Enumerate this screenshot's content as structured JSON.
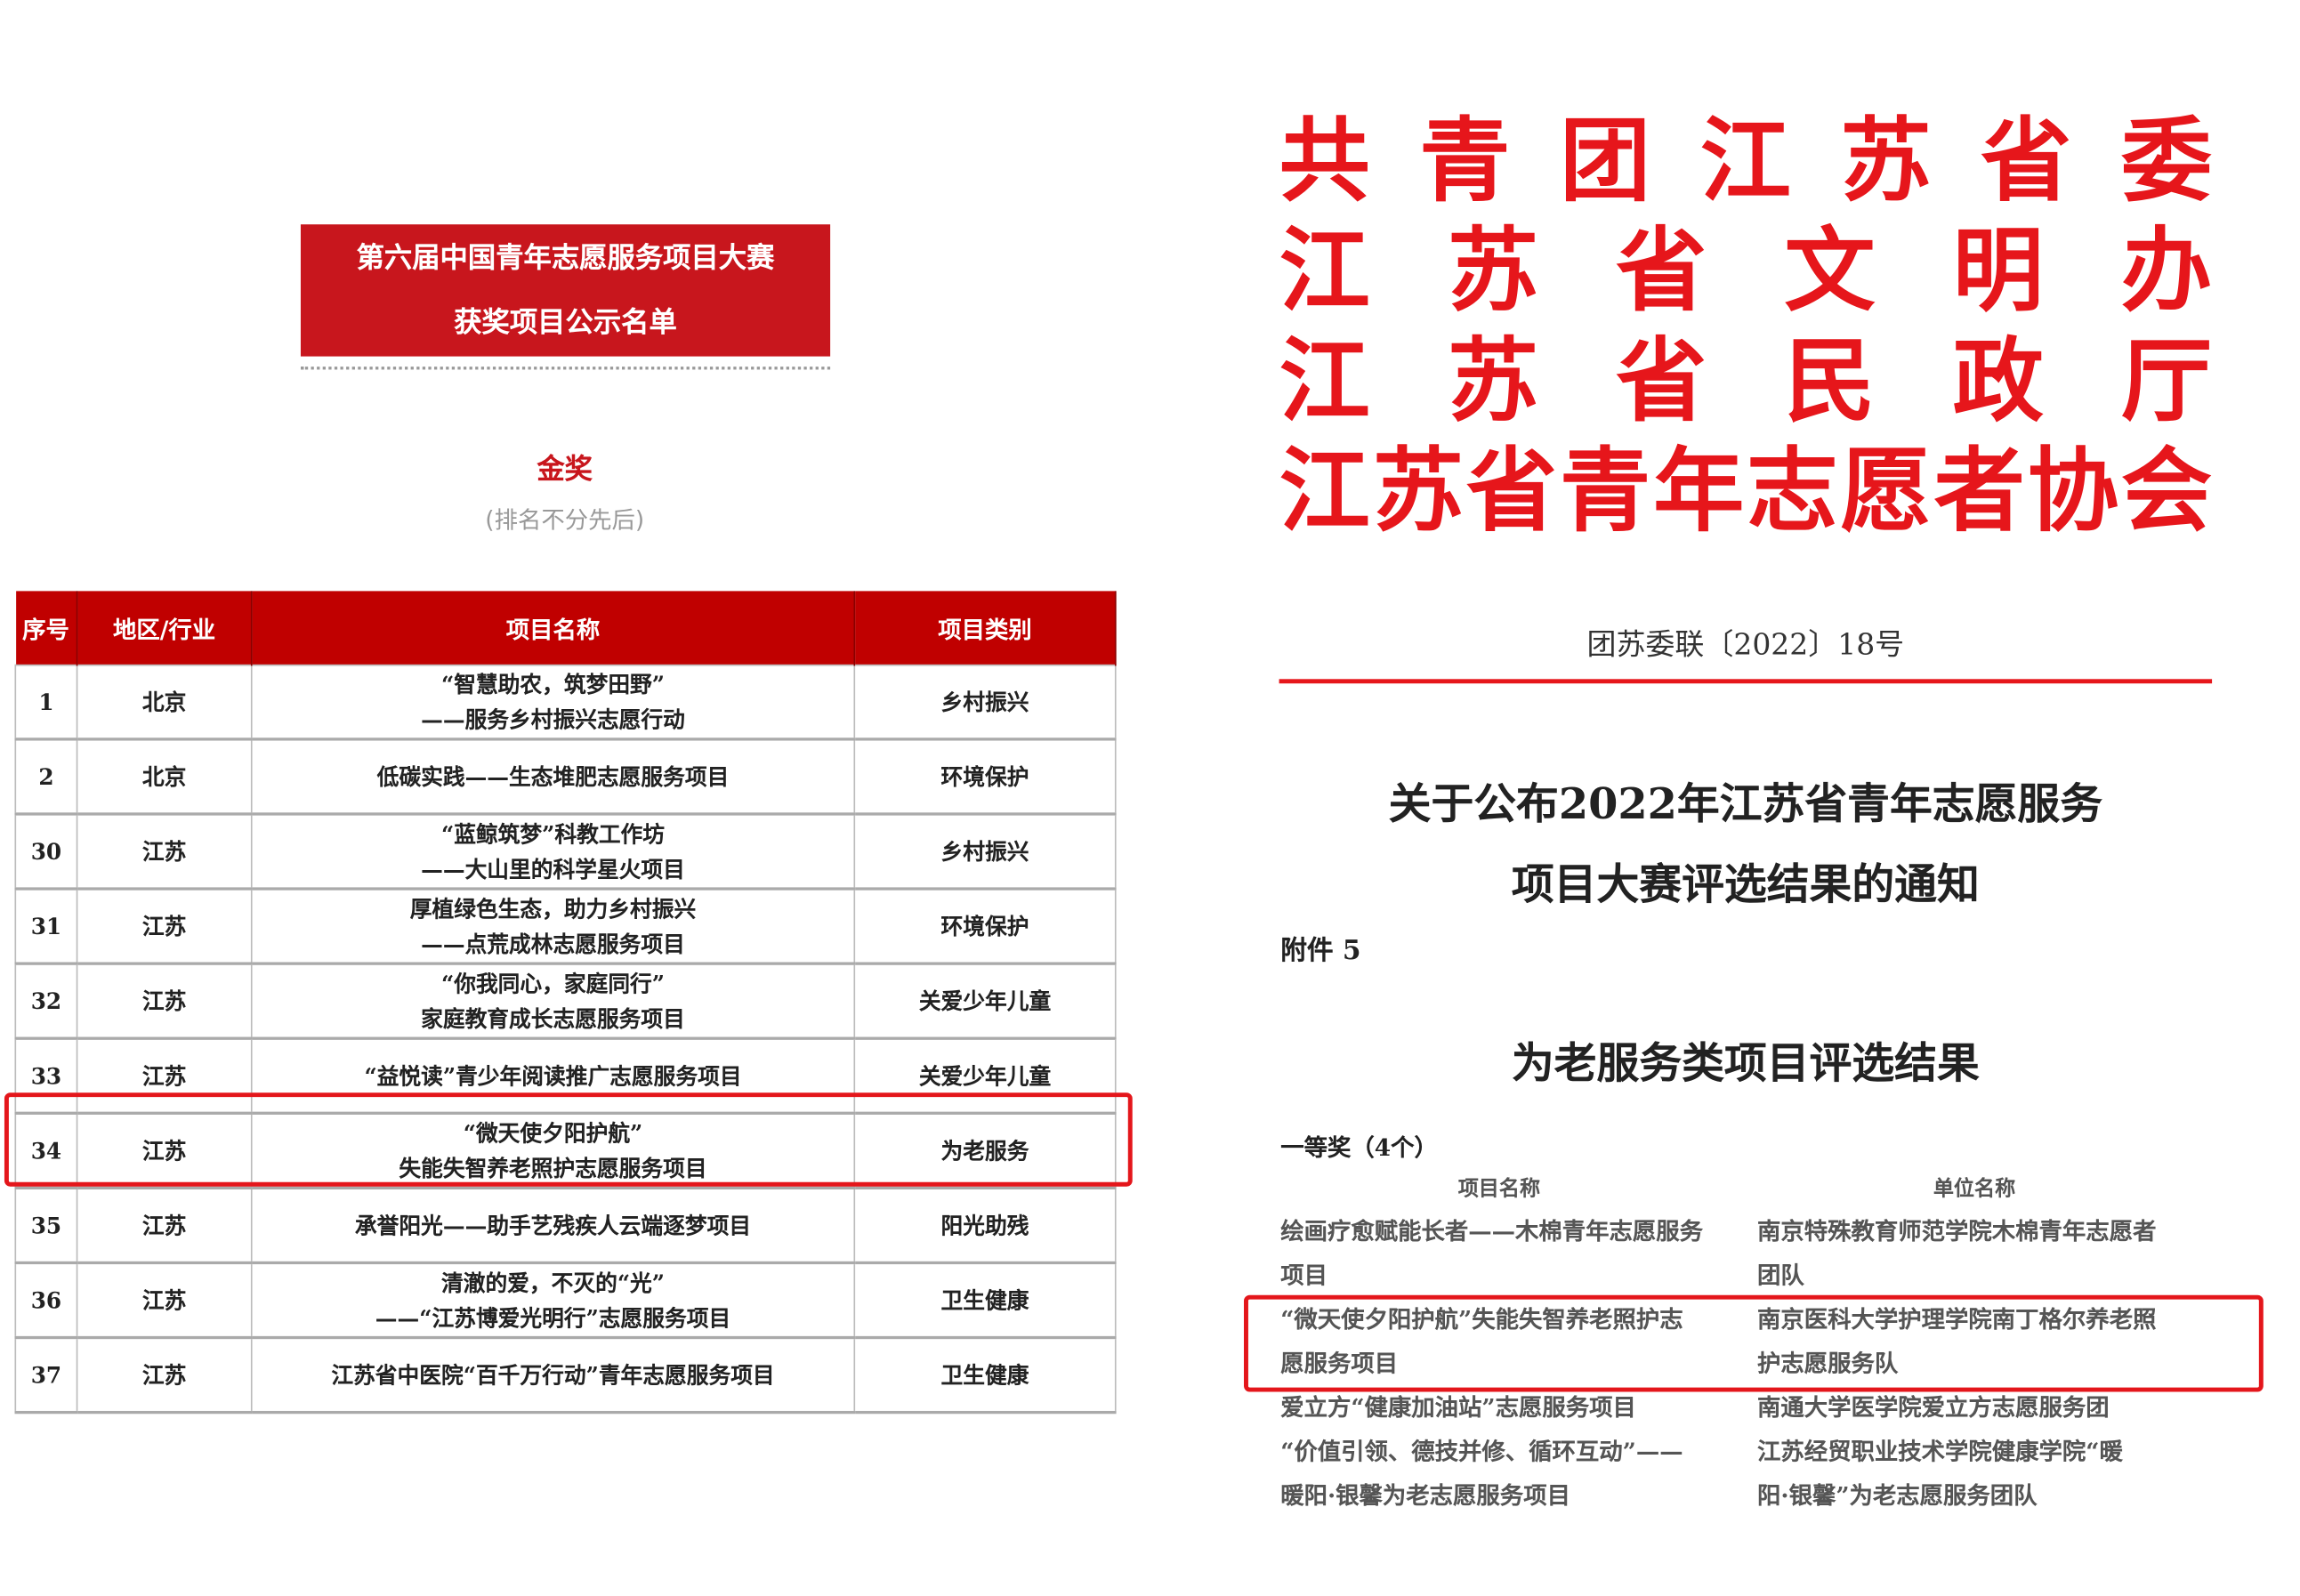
{
  "left": {
    "title_lines": [
      "第六届中国青年志愿服务项目大赛",
      "获奖项目公示名单"
    ],
    "award": "金奖",
    "note": "(排名不分先后)",
    "headers": [
      "序号",
      "地区/行业",
      "项目名称",
      "项目类别"
    ],
    "rows": [
      {
        "no": "1",
        "region": "北京",
        "name1": "“智慧助农，筑梦田野”",
        "name2": "——服务乡村振兴志愿行动",
        "cat": "乡村振兴"
      },
      {
        "no": "2",
        "region": "北京",
        "name1": "低碳实践——生态堆肥志愿服务项目",
        "name2": "",
        "cat": "环境保护"
      },
      {
        "no": "30",
        "region": "江苏",
        "name1": "“蓝鲸筑梦”科教工作坊",
        "name2": "——大山里的科学星火项目",
        "cat": "乡村振兴"
      },
      {
        "no": "31",
        "region": "江苏",
        "name1": "厚植绿色生态，助力乡村振兴",
        "name2": "——点荒成林志愿服务项目",
        "cat": "环境保护"
      },
      {
        "no": "32",
        "region": "江苏",
        "name1": "“你我同心，家庭同行”",
        "name2": "家庭教育成长志愿服务项目",
        "cat": "关爱少年儿童"
      },
      {
        "no": "33",
        "region": "江苏",
        "name1": "“益悦读”青少年阅读推广志愿服务项目",
        "name2": "",
        "cat": "关爱少年儿童"
      },
      {
        "no": "34",
        "region": "江苏",
        "name1": "“微天使夕阳护航”",
        "name2": "失能失智养老照护志愿服务项目",
        "cat": "为老服务"
      },
      {
        "no": "35",
        "region": "江苏",
        "name1": "承誉阳光——助手艺残疾人云端逐梦项目",
        "name2": "",
        "cat": "阳光助残"
      },
      {
        "no": "36",
        "region": "江苏",
        "name1": "清澈的爱，不灭的“光”",
        "name2": "——“江苏博爱光明行”志愿服务项目",
        "cat": "卫生健康"
      },
      {
        "no": "37",
        "region": "江苏",
        "name1": "江苏省中医院“百千万行动”青年志愿服务项目",
        "name2": "",
        "cat": "卫生健康"
      }
    ]
  },
  "right": {
    "issuers": [
      "共青团江苏省委",
      "江苏省文明办",
      "江苏省民政厅",
      "江苏省青年志愿者协会"
    ],
    "doc_no": "团苏委联〔2022〕18号",
    "title_lines": [
      "关于公布2022年江苏省青年志愿服务",
      "项目大赛评选结果的通知"
    ],
    "attachment": "附件 5",
    "subtitle": "为老服务类项目评选结果",
    "prize": "一等奖（4个）",
    "col_headers": [
      "项目名称",
      "单位名称"
    ],
    "lines": [
      [
        "绘画疗愈赋能长者——木棉青年志愿服务",
        "南京特殊教育师范学院木棉青年志愿者"
      ],
      [
        "项目",
        "团队"
      ],
      [
        "“微天使夕阳护航”失能失智养老照护志",
        "南京医科大学护理学院南丁格尔养老照"
      ],
      [
        "愿服务项目",
        "护志愿服务队"
      ],
      [
        "爱立方“健康加油站”志愿服务项目",
        "南通大学医学院爱立方志愿服务团"
      ],
      [
        "“价值引领、德技并修、循环互动”——",
        "江苏经贸职业技术学院健康学院“暖"
      ],
      [
        "暖阳·银馨为老志愿服务项目",
        "阳·银馨”为老志愿服务团队"
      ]
    ]
  },
  "colors": {
    "red": "#c8161d",
    "highlight": "#e4161b"
  }
}
